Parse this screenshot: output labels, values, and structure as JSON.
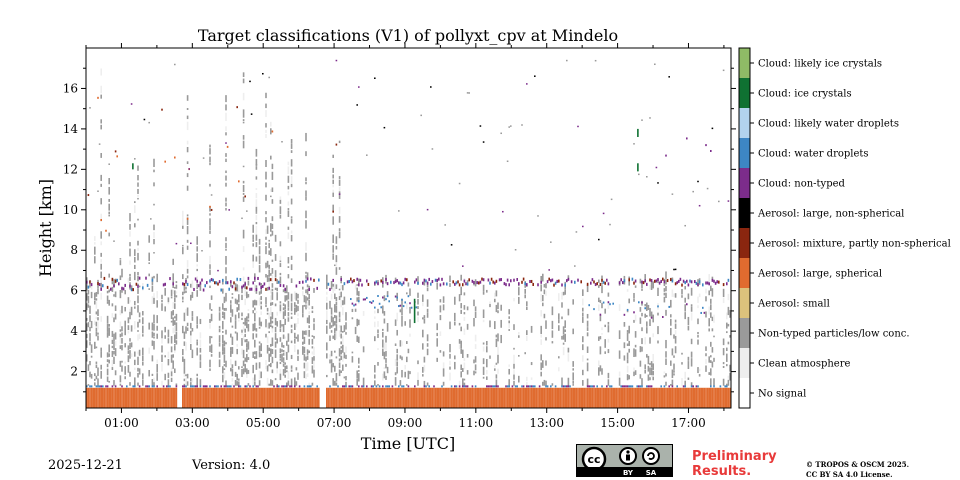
{
  "chart_data": {
    "type": "heatmap",
    "title": "Target classifications (V1) of pollyxt_cpv at Mindelo",
    "xlabel": "Time [UTC]",
    "ylabel": "Height [km]",
    "xlim_hours": [
      0,
      18.2
    ],
    "ylim_km": [
      0.2,
      18
    ],
    "x_ticks": [
      "01:00",
      "03:00",
      "05:00",
      "07:00",
      "09:00",
      "11:00",
      "13:00",
      "15:00",
      "17:00"
    ],
    "y_ticks": [
      "2",
      "4",
      "6",
      "8",
      "10",
      "12",
      "14",
      "16"
    ],
    "legend": [
      {
        "label": "Cloud: likely ice crystals",
        "color": "#8fbb66"
      },
      {
        "label": "Cloud: ice crystals",
        "color": "#0f7132"
      },
      {
        "label": "Cloud: likely water droplets",
        "color": "#b2d3ee"
      },
      {
        "label": "Cloud: water droplets",
        "color": "#3d86c4"
      },
      {
        "label": "Cloud: non-typed",
        "color": "#7c2c8b"
      },
      {
        "label": "Aerosol: large, non-spherical",
        "color": "#000000"
      },
      {
        "label": "Aerosol: mixture, partly non-spherical",
        "color": "#8a260f"
      },
      {
        "label": "Aerosol: large, spherical",
        "color": "#e06b2f"
      },
      {
        "label": "Aerosol: small",
        "color": "#dcc27c"
      },
      {
        "label": "Non-typed particles/low conc.",
        "color": "#9a9a9a"
      },
      {
        "label": "Clean atmosphere",
        "color": "#eeeeee"
      },
      {
        "label": "No signal",
        "color": "#ffffff"
      }
    ],
    "layers": {
      "surface_aerosol_top_km": 1.2,
      "elevated_layer_top_km": [
        6.3,
        6.6
      ],
      "data_gaps_hours": [
        [
          2.55,
          2.7
        ],
        [
          6.55,
          6.75
        ]
      ]
    }
  },
  "footer": {
    "date": "2025-12-21",
    "version": "Version: 4.0",
    "preliminary_line1": "Preliminary",
    "preliminary_line2": "Results.",
    "copyright_line1": "© TROPOS & OSCM 2025.",
    "copyright_line2": "CC BY SA 4.0 License.",
    "cc_badge": {
      "cc": "cc",
      "by": "BY",
      "sa": "SA"
    }
  }
}
